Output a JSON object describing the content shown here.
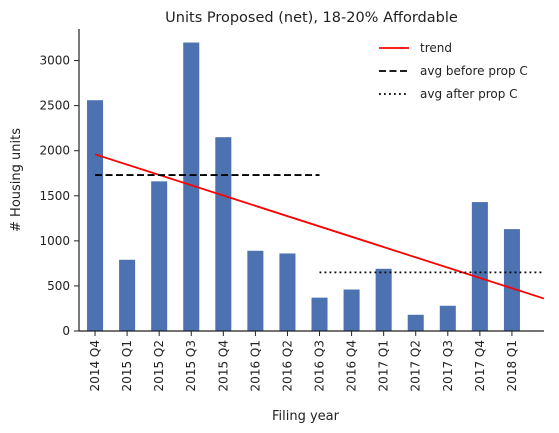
{
  "chart_data": {
    "type": "bar",
    "title": "Units Proposed (net), 18-20% Affordable",
    "xlabel": "Filing year",
    "ylabel": "# Housing units",
    "ylim": [
      0,
      3350
    ],
    "yticks": [
      0,
      500,
      1000,
      1500,
      2000,
      2500,
      3000
    ],
    "categories": [
      "2014 Q4",
      "2015 Q1",
      "2015 Q2",
      "2015 Q3",
      "2015 Q4",
      "2016 Q1",
      "2016 Q2",
      "2016 Q3",
      "2016 Q4",
      "2017 Q1",
      "2017 Q2",
      "2017 Q3",
      "2017 Q4",
      "2018 Q1"
    ],
    "values": [
      2560,
      790,
      1660,
      3200,
      2150,
      890,
      860,
      370,
      460,
      690,
      180,
      280,
      1430,
      1130
    ],
    "bar_color": "#4c72b0",
    "overlays": [
      {
        "name": "trend",
        "style": "solid",
        "color": "#ff0000",
        "start": {
          "x_index": 0,
          "y": 1960
        },
        "end": {
          "x_index": 14.5,
          "y": 360
        }
      },
      {
        "name": "avg before prop C",
        "style": "dashed",
        "color": "#000000",
        "x_index_range": [
          0,
          7
        ],
        "y": 1730
      },
      {
        "name": "avg after prop C",
        "style": "dotted",
        "color": "#000000",
        "x_index_range": [
          7,
          14.5
        ],
        "y": 650
      }
    ],
    "legend": {
      "placement": "top-right",
      "entries": [
        "trend",
        "avg before prop C",
        "avg after prop C"
      ]
    },
    "grid": false
  }
}
